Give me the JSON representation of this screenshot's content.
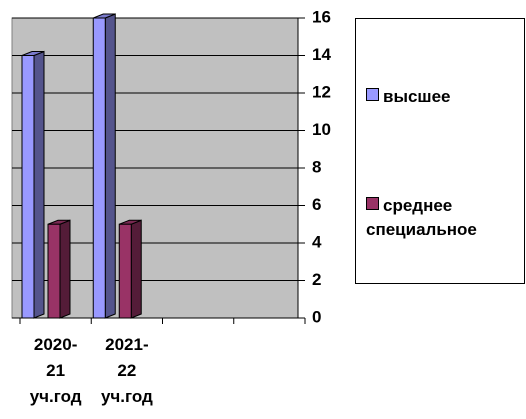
{
  "chart_data": {
    "type": "bar",
    "categories": [
      "2020-21 уч.год",
      "2021-22 уч.год",
      null,
      null
    ],
    "series": [
      {
        "name": "высшее",
        "color": "#9999ff",
        "values": [
          14,
          16,
          null,
          null
        ]
      },
      {
        "name": "среднее специальное",
        "color": "#993366",
        "values": [
          5,
          5,
          null,
          null
        ]
      }
    ],
    "ylim": [
      0,
      16
    ],
    "yticks": [
      0,
      2,
      4,
      6,
      8,
      10,
      12,
      14,
      16
    ],
    "grid": true,
    "legend": "right"
  }
}
